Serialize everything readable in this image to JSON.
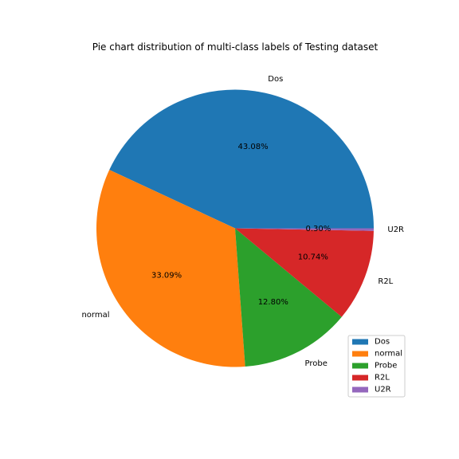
{
  "chart_data": {
    "type": "pie",
    "title": "Pie chart distribution of multi-class labels of Testing dataset",
    "slices": [
      {
        "label": "Dos",
        "value": 43.08,
        "pct_text": "43.08%",
        "color": "#1f77b4"
      },
      {
        "label": "normal",
        "value": 33.09,
        "pct_text": "33.09%",
        "color": "#ff7f0e"
      },
      {
        "label": "Probe",
        "value": 12.8,
        "pct_text": "12.80%",
        "color": "#2ca02c"
      },
      {
        "label": "R2L",
        "value": 10.74,
        "pct_text": "10.74%",
        "color": "#d62728"
      },
      {
        "label": "U2R",
        "value": 0.3,
        "pct_text": "0.30%",
        "color": "#9467bd"
      }
    ],
    "start_angle": 0,
    "direction": "counterclockwise",
    "legend": {
      "placement": "lower-right",
      "entries": [
        "Dos",
        "normal",
        "Probe",
        "R2L",
        "U2R"
      ]
    }
  }
}
